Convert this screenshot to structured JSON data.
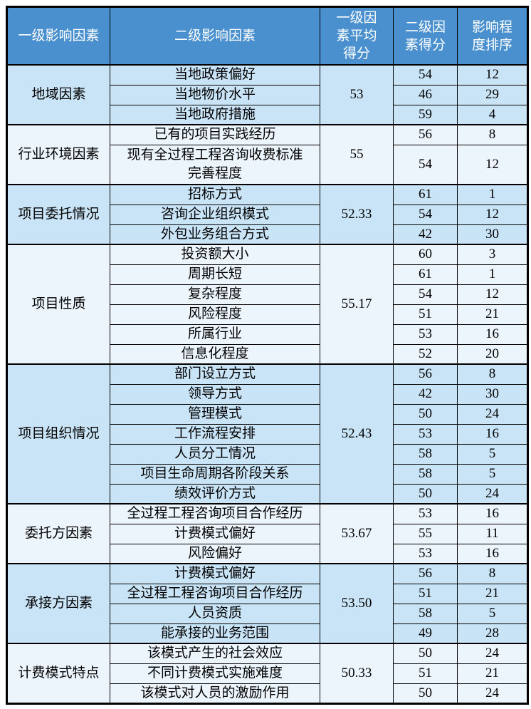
{
  "table": {
    "columns": [
      {
        "label": "一级影响因素"
      },
      {
        "label": "二级影响因素"
      },
      {
        "label": "一级因\n素平均\n得分"
      },
      {
        "label": "二级因\n素得分"
      },
      {
        "label": "影响程\n度排序"
      }
    ],
    "groups": [
      {
        "name": "地域因素",
        "avg": "53",
        "shade": "blue",
        "rows": [
          {
            "label": "当地政策偏好",
            "score": "54",
            "rank": "12"
          },
          {
            "label": "当地物价水平",
            "score": "46",
            "rank": "29"
          },
          {
            "label": "当地政府措施",
            "score": "59",
            "rank": "4"
          }
        ]
      },
      {
        "name": "行业环境因素",
        "avg": "55",
        "shade": "light",
        "rows": [
          {
            "label": "已有的项目实践经历",
            "score": "56",
            "rank": "8"
          },
          {
            "label": "现有全过程工程咨询收费标准\n完善程度",
            "score": "54",
            "rank": "12"
          }
        ]
      },
      {
        "name": "项目委托情况",
        "avg": "52.33",
        "shade": "blue",
        "rows": [
          {
            "label": "招标方式",
            "score": "61",
            "rank": "1"
          },
          {
            "label": "咨询企业组织模式",
            "score": "54",
            "rank": "12"
          },
          {
            "label": "外包业务组合方式",
            "score": "42",
            "rank": "30"
          }
        ]
      },
      {
        "name": "项目性质",
        "avg": "55.17",
        "shade": "light",
        "rows": [
          {
            "label": "投资额大小",
            "score": "60",
            "rank": "3"
          },
          {
            "label": "周期长短",
            "score": "61",
            "rank": "1"
          },
          {
            "label": "复杂程度",
            "score": "54",
            "rank": "12"
          },
          {
            "label": "风险程度",
            "score": "51",
            "rank": "21"
          },
          {
            "label": "所属行业",
            "score": "53",
            "rank": "16"
          },
          {
            "label": "信息化程度",
            "score": "52",
            "rank": "20"
          }
        ]
      },
      {
        "name": "项目组织情况",
        "avg": "52.43",
        "shade": "blue",
        "rows": [
          {
            "label": "部门设立方式",
            "score": "56",
            "rank": "8"
          },
          {
            "label": "领导方式",
            "score": "42",
            "rank": "30"
          },
          {
            "label": "管理模式",
            "score": "50",
            "rank": "24"
          },
          {
            "label": "工作流程安排",
            "score": "53",
            "rank": "16"
          },
          {
            "label": "人员分工情况",
            "score": "58",
            "rank": "5"
          },
          {
            "label": "项目生命周期各阶段关系",
            "score": "58",
            "rank": "5"
          },
          {
            "label": "绩效评价方式",
            "score": "50",
            "rank": "24"
          }
        ]
      },
      {
        "name": "委托方因素",
        "avg": "53.67",
        "shade": "light",
        "rows": [
          {
            "label": "全过程工程咨询项目合作经历",
            "score": "53",
            "rank": "16"
          },
          {
            "label": "计费模式偏好",
            "score": "55",
            "rank": "11"
          },
          {
            "label": "风险偏好",
            "score": "53",
            "rank": "16"
          }
        ]
      },
      {
        "name": "承接方因素",
        "avg": "53.50",
        "shade": "blue",
        "rows": [
          {
            "label": "计费模式偏好",
            "score": "56",
            "rank": "8"
          },
          {
            "label": "全过程工程咨询项目合作经历",
            "score": "51",
            "rank": "21"
          },
          {
            "label": "人员资质",
            "score": "58",
            "rank": "5"
          },
          {
            "label": "能承接的业务范围",
            "score": "49",
            "rank": "28"
          }
        ]
      },
      {
        "name": "计费模式特点",
        "avg": "50.33",
        "shade": "light",
        "rows": [
          {
            "label": "该模式产生的社会效应",
            "score": "50",
            "rank": "24"
          },
          {
            "label": "不同计费模式实施难度",
            "score": "51",
            "rank": "21"
          },
          {
            "label": "该模式对人员的激励作用",
            "score": "50",
            "rank": "24"
          }
        ]
      }
    ]
  },
  "colors": {
    "header_bg": "#4a90ce",
    "header_text": "#ffffff",
    "group_blue": "#c8e4f6",
    "group_light": "#ecf5fb",
    "border": "#000000"
  }
}
